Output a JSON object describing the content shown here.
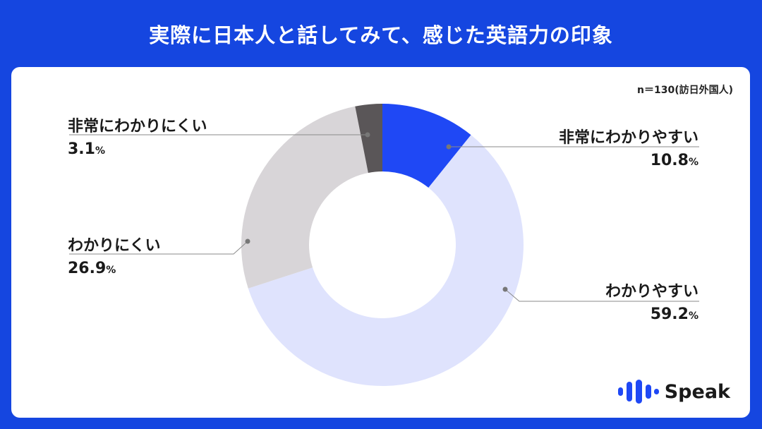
{
  "title": "実際に日本人と話してみて、感じた英語力の印象",
  "sample_note": "n＝130(訪日外国人)",
  "logo_text": "Speak",
  "chart_data": {
    "type": "pie",
    "style": "donut",
    "title": "実際に日本人と話してみて、感じた英語力の印象",
    "unit": "%",
    "slices": [
      {
        "label": "非常にわかりやすい",
        "value": 10.8,
        "value_text": "10.8",
        "color": "#1f48f5"
      },
      {
        "label": "わかりやすい",
        "value": 59.2,
        "value_text": "59.2",
        "color": "#dfe3fd"
      },
      {
        "label": "わかりにくい",
        "value": 26.9,
        "value_text": "26.9",
        "color": "#d8d5d8"
      },
      {
        "label": "非常にわかりにくい",
        "value": 3.1,
        "value_text": "3.1",
        "color": "#5a5658"
      }
    ]
  },
  "colors": {
    "background": "#1546e0",
    "card": "#ffffff",
    "leader": "#8a8a8a",
    "logo": "#1f48f5"
  }
}
